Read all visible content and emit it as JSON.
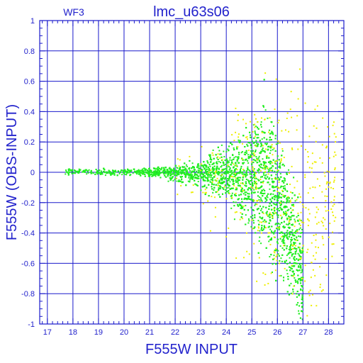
{
  "header": {
    "chip_label": "WF3",
    "title": "lmc_u63s06"
  },
  "colors": {
    "frame": "#1a1acc",
    "text": "#2222cc",
    "main_points": "#22ee22",
    "secondary_points": "#eeee00",
    "background": "#ffffff"
  },
  "chart_data": {
    "type": "scatter",
    "title": "lmc_u63s06",
    "subtitle": "WF3",
    "xlabel": "F555W INPUT",
    "ylabel": "F555W (OBS-INPUT)",
    "xlim": [
      16.7,
      28.6
    ],
    "ylim": [
      -1,
      1
    ],
    "xticks": [
      17,
      18,
      19,
      20,
      21,
      22,
      23,
      24,
      25,
      26,
      27,
      28
    ],
    "yticks": [
      -1,
      -0.8,
      -0.6,
      -0.4,
      -0.2,
      0,
      0.2,
      0.4,
      0.6,
      0.8,
      1
    ],
    "grid": true,
    "legend": "none",
    "series": [
      {
        "color": "#22ee22",
        "distribution": "dense band starting near x=17.7 at y≈0; spread widens with magnitude, reaching ±0.2 near x=24, +0.5/−0.6 near x=25.7, falls off steeply after x=26.5; no points below ~17.7",
        "envelope": [
          {
            "x": 17.7,
            "low": -0.02,
            "high": 0.03
          },
          {
            "x": 18.0,
            "low": -0.02,
            "high": 0.02
          },
          {
            "x": 20.0,
            "low": -0.02,
            "high": 0.02
          },
          {
            "x": 21.0,
            "low": -0.03,
            "high": 0.03
          },
          {
            "x": 22.0,
            "low": -0.06,
            "high": 0.05
          },
          {
            "x": 23.0,
            "low": -0.1,
            "high": 0.08
          },
          {
            "x": 24.0,
            "low": -0.2,
            "high": 0.18
          },
          {
            "x": 24.5,
            "low": -0.3,
            "high": 0.24
          },
          {
            "x": 25.0,
            "low": -0.38,
            "high": 0.34
          },
          {
            "x": 25.5,
            "low": -0.5,
            "high": 0.45
          },
          {
            "x": 26.0,
            "low": -0.65,
            "high": 0.22
          },
          {
            "x": 26.5,
            "low": -0.8,
            "high": 0.0
          },
          {
            "x": 27.0,
            "low": -1.0,
            "high": -0.4
          }
        ]
      },
      {
        "color": "#eeee00",
        "distribution": "sparse yellow points mostly at x>22, concentrated around x=25.5–27 within the green band, plus scattered outliers up to y≈0.7 and down to y≈−1",
        "envelope": [
          {
            "x": 22.0,
            "low": -0.15,
            "high": 0.1
          },
          {
            "x": 24.0,
            "low": -0.5,
            "high": 0.3
          },
          {
            "x": 25.5,
            "low": -0.8,
            "high": 0.7
          },
          {
            "x": 26.5,
            "low": -1.0,
            "high": 0.6
          },
          {
            "x": 27.5,
            "low": -1.0,
            "high": 0.5
          },
          {
            "x": 28.3,
            "low": -0.5,
            "high": 0.4
          }
        ]
      }
    ]
  }
}
